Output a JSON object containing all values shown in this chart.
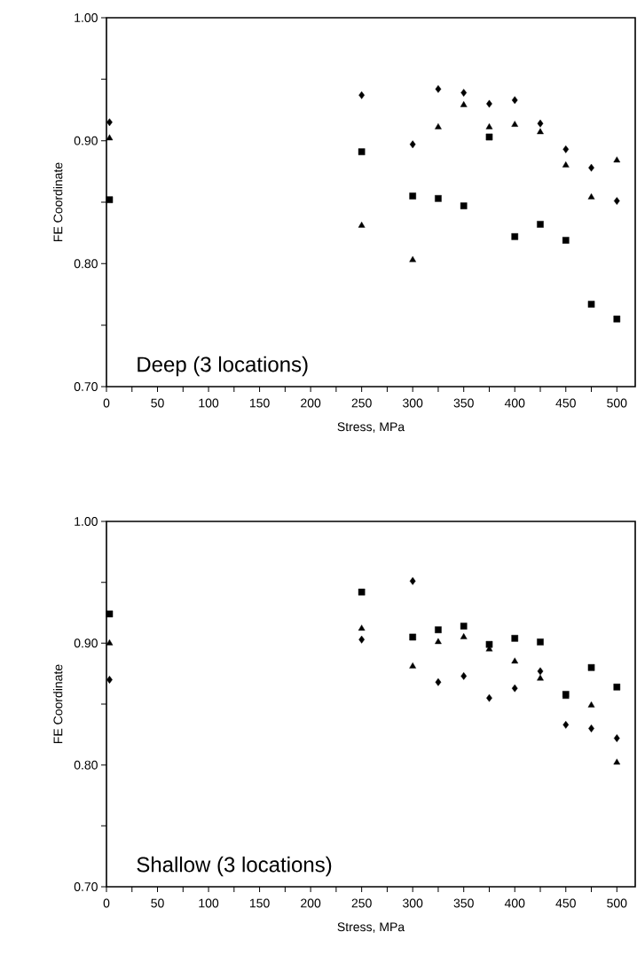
{
  "chart_data": [
    {
      "type": "scatter",
      "xlabel": "Stress, MPa",
      "ylabel": "FE Coordinate",
      "annotations": [
        "Deep (3 locations)"
      ],
      "xlim": [
        0,
        518
      ],
      "ylim": [
        0.7,
        1.0
      ],
      "xticks": [
        0,
        {
          "value": 25,
          "label": null
        },
        50,
        {
          "value": 75,
          "label": null
        },
        100,
        {
          "value": 125,
          "label": null
        },
        150,
        {
          "value": 175,
          "label": null
        },
        200,
        {
          "value": 225,
          "label": null
        },
        250,
        {
          "value": 275,
          "label": null
        },
        300,
        {
          "value": 325,
          "label": null
        },
        350,
        {
          "value": 375,
          "label": null
        },
        400,
        {
          "value": 425,
          "label": null
        },
        450,
        {
          "value": 475,
          "label": null
        },
        500
      ],
      "yticks": [
        {
          "value": 0.7,
          "label": "0.70"
        },
        {
          "value": 0.75,
          "label": null
        },
        {
          "value": 0.8,
          "label": "0.80"
        },
        {
          "value": 0.85,
          "label": null
        },
        {
          "value": 0.9,
          "label": "0.90"
        },
        {
          "value": 0.95,
          "label": null
        },
        {
          "value": 1.0,
          "label": "1.00"
        }
      ],
      "x": [
        3,
        250,
        300,
        325,
        350,
        375,
        400,
        425,
        450,
        475,
        500
      ],
      "series": [
        {
          "marker": "diamond",
          "color": "#000000",
          "values": [
            0.915,
            0.937,
            0.897,
            0.942,
            0.939,
            0.93,
            0.933,
            0.914,
            0.893,
            0.878,
            0.851
          ]
        },
        {
          "marker": "square",
          "color": "#000000",
          "values": [
            0.852,
            0.891,
            0.855,
            0.853,
            0.847,
            0.903,
            0.822,
            0.832,
            0.819,
            0.767,
            0.755
          ]
        },
        {
          "marker": "triangle",
          "color": "#000000",
          "values": [
            0.902,
            0.831,
            0.803,
            0.911,
            0.929,
            0.911,
            0.913,
            0.907,
            0.88,
            0.854,
            0.884
          ]
        }
      ]
    },
    {
      "type": "scatter",
      "xlabel": "Stress, MPa",
      "ylabel": "FE Coordinate",
      "annotations": [
        "Shallow (3 locations)"
      ],
      "xlim": [
        0,
        518
      ],
      "ylim": [
        0.7,
        1.0
      ],
      "xticks": [
        0,
        {
          "value": 25,
          "label": null
        },
        50,
        {
          "value": 75,
          "label": null
        },
        100,
        {
          "value": 125,
          "label": null
        },
        150,
        {
          "value": 175,
          "label": null
        },
        200,
        {
          "value": 225,
          "label": null
        },
        250,
        {
          "value": 275,
          "label": null
        },
        300,
        {
          "value": 325,
          "label": null
        },
        350,
        {
          "value": 375,
          "label": null
        },
        400,
        {
          "value": 425,
          "label": null
        },
        450,
        {
          "value": 475,
          "label": null
        },
        500
      ],
      "yticks": [
        {
          "value": 0.7,
          "label": "0.70"
        },
        {
          "value": 0.75,
          "label": null
        },
        {
          "value": 0.8,
          "label": "0.80"
        },
        {
          "value": 0.85,
          "label": null
        },
        {
          "value": 0.9,
          "label": "0.90"
        },
        {
          "value": 0.95,
          "label": null
        },
        {
          "value": 1.0,
          "label": "1.00"
        }
      ],
      "x": [
        3,
        250,
        300,
        325,
        350,
        375,
        400,
        425,
        450,
        475,
        500
      ],
      "series": [
        {
          "marker": "diamond",
          "color": "#000000",
          "values": [
            0.87,
            0.903,
            0.951,
            0.868,
            0.873,
            0.855,
            0.863,
            0.877,
            0.833,
            0.83,
            0.822
          ]
        },
        {
          "marker": "square",
          "color": "#000000",
          "values": [
            0.924,
            0.942,
            0.905,
            0.911,
            0.914,
            0.899,
            0.904,
            0.901,
            0.858,
            0.88,
            0.864
          ]
        },
        {
          "marker": "triangle",
          "color": "#000000",
          "values": [
            0.9,
            0.912,
            0.881,
            0.901,
            0.905,
            0.895,
            0.885,
            0.871,
            0.856,
            0.849,
            0.802
          ]
        }
      ]
    }
  ]
}
